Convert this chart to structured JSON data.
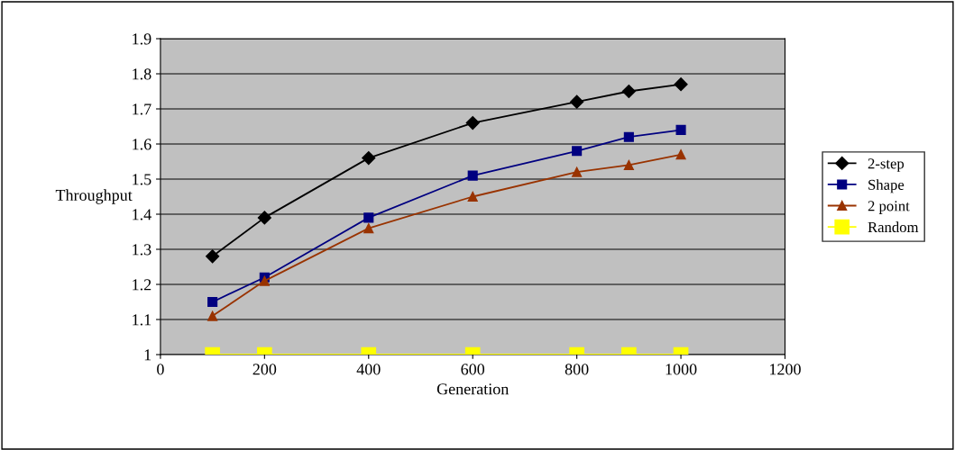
{
  "chart_data": {
    "type": "line",
    "xlabel": "Generation",
    "ylabel": "Throughput",
    "xlim": [
      0,
      1200
    ],
    "xticks": [
      0,
      200,
      400,
      600,
      800,
      1000,
      1200
    ],
    "ylim": [
      1,
      1.9
    ],
    "yticks": [
      1,
      1.1,
      1.2,
      1.3,
      1.4,
      1.5,
      1.6,
      1.7,
      1.8,
      1.9
    ],
    "grid": "y",
    "legend": "right",
    "series": [
      {
        "name": "2-step",
        "color": "#000000",
        "marker": "diamond",
        "x": [
          100,
          200,
          400,
          600,
          800,
          900,
          1000
        ],
        "values": [
          1.28,
          1.39,
          1.56,
          1.66,
          1.72,
          1.75,
          1.77
        ]
      },
      {
        "name": "Shape",
        "color": "#000080",
        "marker": "square",
        "x": [
          100,
          200,
          400,
          600,
          800,
          900,
          1000
        ],
        "values": [
          1.15,
          1.22,
          1.39,
          1.51,
          1.58,
          1.62,
          1.64
        ]
      },
      {
        "name": "2 point",
        "color": "#993300",
        "marker": "triangle",
        "x": [
          100,
          200,
          400,
          600,
          800,
          900,
          1000
        ],
        "values": [
          1.11,
          1.21,
          1.36,
          1.45,
          1.52,
          1.54,
          1.57
        ]
      },
      {
        "name": "Random",
        "color": "#ffff00",
        "marker": "square",
        "x": [
          100,
          200,
          400,
          600,
          800,
          900,
          1000
        ],
        "values": [
          1,
          1,
          1,
          1,
          1,
          1,
          1
        ]
      }
    ]
  }
}
